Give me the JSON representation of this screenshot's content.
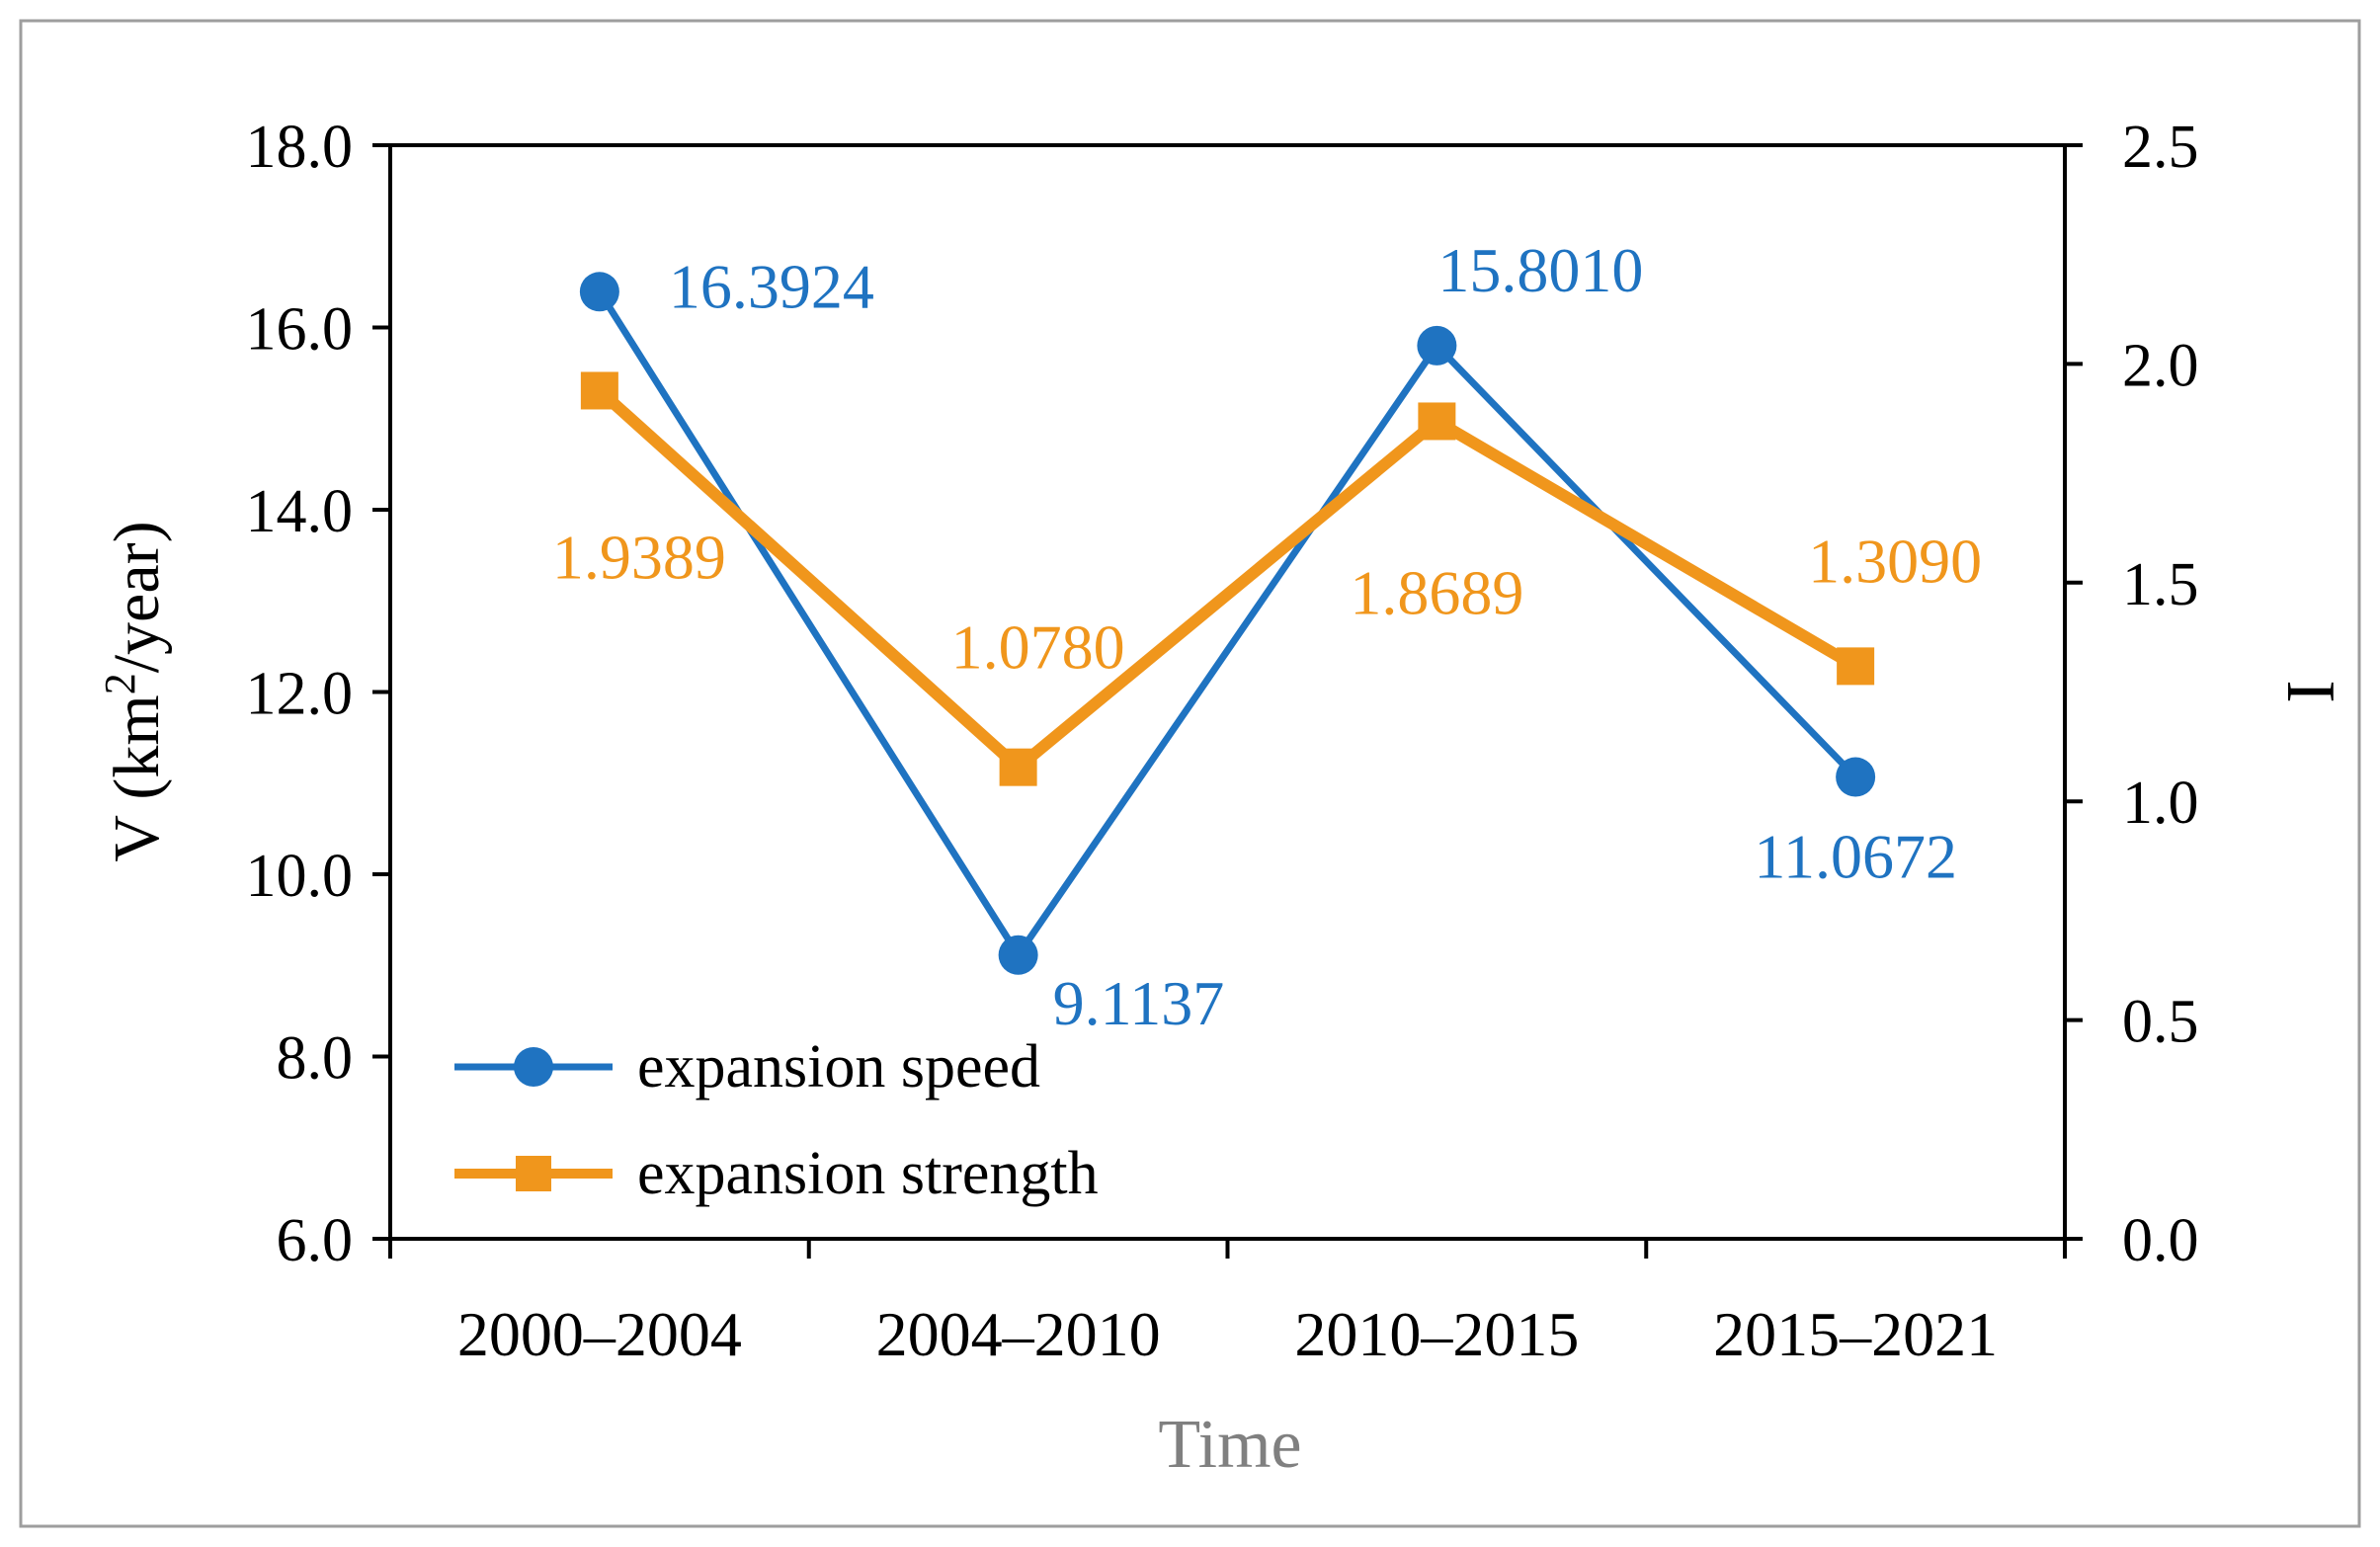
{
  "colors": {
    "speed": "#1F73C1",
    "strength": "#F0961C",
    "axis": "#000000",
    "xlabel": "#808080",
    "border": "#9E9E9E"
  },
  "chart_data": {
    "type": "line",
    "title": "",
    "xlabel": "Time",
    "ylabel_left": {
      "pre": "V (km",
      "sup": "2",
      "post": "/year)"
    },
    "ylabel_right": "I",
    "categories": [
      "2000–2004",
      "2004–2010",
      "2010–2015",
      "2015–2021"
    ],
    "y_left": {
      "min": 6.0,
      "max": 18.0,
      "ticks": [
        "6.0",
        "8.0",
        "10.0",
        "12.0",
        "14.0",
        "16.0",
        "18.0"
      ]
    },
    "y_right": {
      "min": 0.0,
      "max": 2.5,
      "ticks": [
        "0.0",
        "0.5",
        "1.0",
        "1.5",
        "2.0",
        "2.5"
      ]
    },
    "grid": false,
    "legend_position": "bottom-left",
    "series": [
      {
        "name": "expansion speed",
        "axis": "left",
        "marker": "circle",
        "values": [
          16.3924,
          9.1137,
          15.801,
          11.0672
        ],
        "labels": [
          "16.3924",
          "9.1137",
          "15.8010",
          "11.0672"
        ]
      },
      {
        "name": "expansion strength",
        "axis": "right",
        "marker": "square",
        "values": [
          1.9389,
          1.078,
          1.8689,
          1.309
        ],
        "labels": [
          "1.9389",
          "1.0780",
          "1.8689",
          "1.3090"
        ]
      }
    ]
  }
}
